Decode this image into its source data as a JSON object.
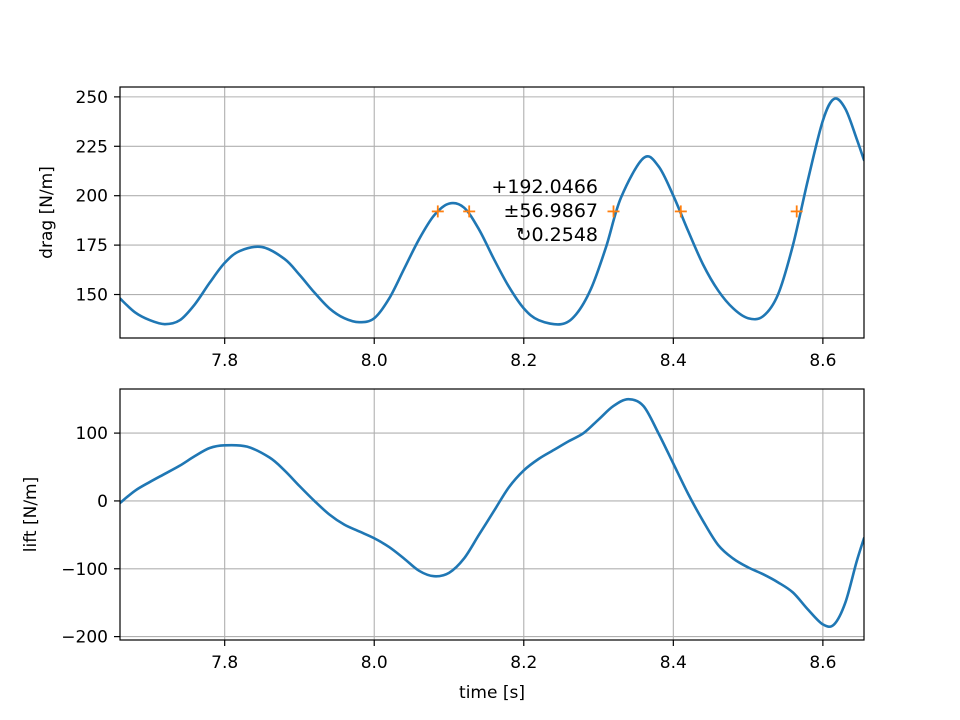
{
  "chart_data": [
    {
      "type": "line",
      "name": "drag-plot",
      "title": "",
      "xlabel": "",
      "ylabel": "drag [N/m]",
      "xlim": [
        7.66,
        8.655
      ],
      "ylim": [
        128,
        255
      ],
      "xticks": [
        7.8,
        8.0,
        8.2,
        8.4,
        8.6
      ],
      "xtick_labels": [
        "7.8",
        "8.0",
        "8.2",
        "8.4",
        "8.6"
      ],
      "yticks": [
        150,
        175,
        200,
        225,
        250
      ],
      "ytick_labels": [
        "150",
        "175",
        "200",
        "225",
        "250"
      ],
      "grid": true,
      "line_color": "#1f77b4",
      "marker_color": "#ff7f0e",
      "series": [
        {
          "x": [
            7.66,
            7.68,
            7.7,
            7.72,
            7.74,
            7.76,
            7.78,
            7.8,
            7.82,
            7.85,
            7.88,
            7.9,
            7.92,
            7.94,
            7.96,
            7.98,
            8.0,
            8.02,
            8.04,
            8.06,
            8.08,
            8.1,
            8.12,
            8.14,
            8.16,
            8.18,
            8.2,
            8.22,
            8.25,
            8.27,
            8.29,
            8.31,
            8.33,
            8.36,
            8.38,
            8.4,
            8.42,
            8.44,
            8.46,
            8.48,
            8.5,
            8.52,
            8.54,
            8.56,
            8.58,
            8.6,
            8.615,
            8.63,
            8.645,
            8.655
          ],
          "y": [
            148,
            141,
            137,
            135,
            137,
            145,
            156,
            166,
            172,
            174,
            168,
            160,
            151,
            143,
            138,
            136,
            138,
            148,
            163,
            178,
            190,
            196,
            194,
            183,
            168,
            154,
            143,
            137,
            135,
            140,
            153,
            174,
            199,
            219,
            215,
            200,
            182,
            165,
            152,
            143,
            138,
            139,
            150,
            175,
            208,
            238,
            249,
            244,
            229,
            218
          ]
        }
      ],
      "markers": {
        "y": 192.0466,
        "x": [
          8.085,
          8.127,
          8.32,
          8.41,
          8.565
        ]
      },
      "annotations": [
        "+192.0466",
        "±56.9867",
        "↻0.2548"
      ]
    },
    {
      "type": "line",
      "name": "lift-plot",
      "title": "",
      "xlabel": "time [s]",
      "ylabel": "lift [N/m]",
      "xlim": [
        7.66,
        8.655
      ],
      "ylim": [
        -205,
        165
      ],
      "xticks": [
        7.8,
        8.0,
        8.2,
        8.4,
        8.6
      ],
      "xtick_labels": [
        "7.8",
        "8.0",
        "8.2",
        "8.4",
        "8.6"
      ],
      "yticks": [
        -200,
        -100,
        0,
        100
      ],
      "ytick_labels": [
        "−200",
        "−100",
        "0",
        "100"
      ],
      "grid": true,
      "line_color": "#1f77b4",
      "series": [
        {
          "x": [
            7.66,
            7.68,
            7.7,
            7.72,
            7.74,
            7.76,
            7.78,
            7.8,
            7.83,
            7.86,
            7.88,
            7.9,
            7.92,
            7.94,
            7.96,
            7.98,
            8.0,
            8.02,
            8.04,
            8.06,
            8.08,
            8.1,
            8.12,
            8.14,
            8.16,
            8.18,
            8.2,
            8.22,
            8.24,
            8.26,
            8.28,
            8.3,
            8.32,
            8.34,
            8.36,
            8.38,
            8.4,
            8.42,
            8.44,
            8.46,
            8.48,
            8.5,
            8.52,
            8.54,
            8.56,
            8.58,
            8.6,
            8.615,
            8.63,
            8.645,
            8.655
          ],
          "y": [
            -3,
            15,
            28,
            40,
            52,
            66,
            78,
            82,
            80,
            64,
            45,
            22,
            0,
            -20,
            -35,
            -45,
            -55,
            -68,
            -85,
            -103,
            -111,
            -106,
            -85,
            -50,
            -15,
            20,
            45,
            62,
            75,
            88,
            100,
            120,
            140,
            150,
            140,
            100,
            55,
            10,
            -30,
            -65,
            -85,
            -98,
            -108,
            -120,
            -135,
            -160,
            -182,
            -182,
            -150,
            -90,
            -55
          ]
        }
      ]
    }
  ]
}
